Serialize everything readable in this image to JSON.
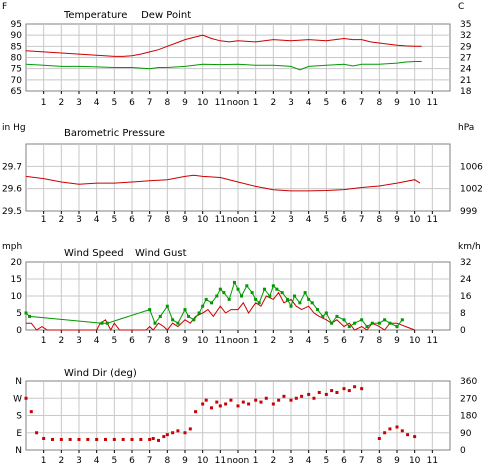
{
  "hour_labels": [
    "1",
    "2",
    "3",
    "4",
    "5",
    "6",
    "7",
    "8",
    "9",
    "10",
    "11",
    "noon",
    "1",
    "2",
    "3",
    "4",
    "5",
    "6",
    "7",
    "8",
    "9",
    "10",
    "11"
  ],
  "colors": {
    "red": "#cc0000",
    "green": "#009900",
    "frame": "#808080",
    "grid": "#c8c8c8"
  },
  "chart_data": [
    {
      "type": "line",
      "title_parts": [
        {
          "text": "Temperature",
          "color": "#cc0000"
        },
        {
          "text": "Dew Point",
          "color": "#009900"
        }
      ],
      "left_unit": "F",
      "right_unit": "C",
      "x_range_hours": [
        0,
        24
      ],
      "ylim": [
        65,
        95
      ],
      "left_ticks": [
        "95",
        "90",
        "85",
        "80",
        "75",
        "70",
        "65"
      ],
      "right_ticks": [
        "35",
        "32",
        "29",
        "27",
        "24",
        "21",
        "18"
      ],
      "grid": true,
      "series": [
        {
          "name": "Temperature",
          "color": "#cc0000",
          "x": [
            0,
            1,
            2,
            3,
            4,
            5,
            5.5,
            6,
            6.5,
            7,
            7.5,
            8,
            8.5,
            9,
            9.5,
            10,
            10.5,
            11,
            11.5,
            12,
            13,
            14,
            15,
            16,
            17,
            17.5,
            18,
            18.5,
            19,
            19.5,
            20,
            20.5,
            21,
            21.5,
            22,
            22.4
          ],
          "y": [
            83,
            82.5,
            82,
            81.5,
            81,
            80.5,
            80.5,
            80.8,
            81.5,
            82.5,
            83.5,
            85,
            86.5,
            88,
            89,
            90,
            88.5,
            87.5,
            87,
            87.5,
            87,
            88,
            87.5,
            88,
            87.5,
            88,
            88.5,
            88,
            88,
            87,
            86.5,
            86,
            85.5,
            85.2,
            85,
            85
          ]
        },
        {
          "name": "Dew Point",
          "color": "#009900",
          "x": [
            0,
            1,
            2,
            3,
            4,
            5,
            6,
            7,
            7.5,
            8,
            9,
            10,
            11,
            12,
            13,
            14,
            15,
            15.5,
            16,
            17,
            18,
            18.5,
            19,
            20,
            21,
            21.5,
            22,
            22.4
          ],
          "y": [
            77,
            76.5,
            76,
            76,
            75.8,
            75.5,
            75.5,
            75,
            75.5,
            75.5,
            76,
            77,
            76.8,
            77,
            76.5,
            76.5,
            76,
            74.5,
            76,
            76.5,
            77,
            76.2,
            77,
            77,
            77.5,
            78,
            78.2,
            78.2
          ]
        }
      ]
    },
    {
      "type": "line",
      "title_parts": [
        {
          "text": "Barometric Pressure",
          "color": "#cc0000"
        }
      ],
      "left_unit": "in Hg",
      "right_unit": "hPa",
      "x_range_hours": [
        0,
        24
      ],
      "ylim": [
        29.5,
        29.8
      ],
      "left_ticks": [
        "",
        "29.7",
        "29.6",
        "29.5"
      ],
      "right_ticks": [
        "",
        "1006",
        "1002",
        "999"
      ],
      "grid": true,
      "series": [
        {
          "name": "Barometric Pressure",
          "color": "#cc0000",
          "x": [
            0,
            1,
            2,
            3,
            4,
            5,
            6,
            7,
            8,
            9,
            9.5,
            10,
            11,
            12,
            13,
            14,
            15,
            16,
            17,
            18,
            19,
            20,
            21,
            22,
            22.3
          ],
          "y": [
            29.655,
            29.645,
            29.63,
            29.62,
            29.625,
            29.625,
            29.63,
            29.635,
            29.64,
            29.655,
            29.66,
            29.655,
            29.65,
            29.63,
            29.61,
            29.595,
            29.59,
            29.59,
            29.592,
            29.596,
            29.605,
            29.612,
            29.625,
            29.64,
            29.625
          ]
        }
      ]
    },
    {
      "type": "line",
      "title_parts": [
        {
          "text": "Wind Speed",
          "color": "#cc0000"
        },
        {
          "text": "Wind Gust",
          "color": "#009900"
        }
      ],
      "left_unit": "mph",
      "right_unit": "km/h",
      "x_range_hours": [
        0,
        24
      ],
      "ylim": [
        0,
        20
      ],
      "left_ticks": [
        "20",
        "15",
        "10",
        "5",
        "0"
      ],
      "right_ticks": [
        "32",
        "24",
        "16",
        "8",
        "0"
      ],
      "grid": true,
      "series": [
        {
          "name": "Wind Speed",
          "color": "#cc0000",
          "x": [
            0,
            0.3,
            0.6,
            0.9,
            1.2,
            1.5,
            2,
            2.5,
            3,
            3.5,
            4,
            4.2,
            4.5,
            4.8,
            5,
            5.3,
            5.6,
            6,
            6.5,
            6.8,
            7,
            7.2,
            7.5,
            7.8,
            8,
            8.3,
            8.6,
            9,
            9.3,
            9.6,
            10,
            10.3,
            10.6,
            11,
            11.3,
            11.6,
            12,
            12.3,
            12.6,
            13,
            13.3,
            13.6,
            14,
            14.3,
            14.6,
            15,
            15.3,
            15.6,
            16,
            16.3,
            16.6,
            17,
            17.3,
            17.6,
            18,
            18.3,
            18.6,
            19,
            19.3,
            19.6,
            20,
            20.3,
            20.6,
            21,
            21.5,
            22
          ],
          "y": [
            2,
            2,
            0,
            1,
            0,
            0,
            0,
            0,
            0,
            0,
            0,
            2,
            3,
            0,
            2,
            0,
            0,
            0,
            0,
            0,
            1,
            0,
            2,
            1,
            0,
            2,
            1,
            3,
            2,
            4,
            5,
            6,
            4,
            7,
            5,
            6,
            6,
            8,
            5,
            8,
            7,
            10,
            9,
            11,
            8,
            9,
            7,
            6,
            7,
            5,
            4,
            3,
            2,
            3,
            1,
            2,
            0,
            1,
            0,
            2,
            1,
            0,
            2,
            2,
            1,
            0
          ]
        },
        {
          "name": "Wind Gust",
          "color": "#009900",
          "x": [
            0,
            0.2,
            4.3,
            4.6,
            7,
            7.3,
            7.6,
            8,
            8.3,
            8.6,
            9,
            9.2,
            9.5,
            9.8,
            10,
            10.2,
            10.5,
            10.8,
            11,
            11.2,
            11.5,
            11.8,
            12,
            12.2,
            12.5,
            12.8,
            13,
            13.2,
            13.5,
            13.8,
            14,
            14.2,
            14.5,
            14.8,
            15,
            15.2,
            15.5,
            15.8,
            16,
            16.2,
            16.5,
            16.8,
            17,
            17.3,
            17.6,
            18,
            18.3,
            18.6,
            19,
            19.3,
            19.6,
            20,
            20.3,
            20.6,
            21,
            21.3
          ],
          "y": [
            5,
            4,
            2,
            2,
            6,
            2,
            4,
            7,
            3,
            2,
            6,
            4,
            3,
            5,
            7,
            9,
            8,
            10,
            12,
            11,
            9,
            14,
            12,
            10,
            13,
            11,
            9,
            8,
            12,
            10,
            13,
            12,
            11,
            9,
            7,
            10,
            8,
            11,
            9,
            8,
            6,
            4,
            5,
            2,
            4,
            3,
            1,
            2,
            3,
            1,
            2,
            2,
            3,
            2,
            1,
            3
          ]
        }
      ]
    },
    {
      "type": "scatter",
      "title_parts": [
        {
          "text": "Wind Dir (deg)",
          "color": "#cc0000"
        }
      ],
      "left_unit": "",
      "right_unit": "",
      "x_range_hours": [
        0,
        24
      ],
      "ylim": [
        0,
        360
      ],
      "left_ticks": [
        "N",
        "W",
        "S",
        "E",
        "N"
      ],
      "right_ticks": [
        "360",
        "270",
        "180",
        "90",
        "0"
      ],
      "grid": true,
      "series": [
        {
          "name": "Wind Dir",
          "color": "#cc0000",
          "x": [
            0,
            0.3,
            0.6,
            1,
            1.5,
            2,
            2.5,
            3,
            3.5,
            4,
            4.5,
            5,
            5.5,
            6,
            6.5,
            7,
            7.2,
            7.5,
            7.8,
            8,
            8.3,
            8.6,
            9,
            9.3,
            9.6,
            10,
            10.2,
            10.5,
            10.8,
            11,
            11.3,
            11.6,
            12,
            12.3,
            12.6,
            13,
            13.3,
            13.6,
            14,
            14.3,
            14.6,
            15,
            15.3,
            15.6,
            16,
            16.3,
            16.6,
            17,
            17.3,
            17.6,
            18,
            18.3,
            18.6,
            19,
            20,
            20.3,
            20.6,
            21,
            21.3,
            21.6,
            22
          ],
          "y": [
            270,
            200,
            90,
            60,
            55,
            55,
            55,
            55,
            55,
            55,
            55,
            55,
            55,
            55,
            55,
            55,
            60,
            50,
            70,
            80,
            90,
            100,
            90,
            110,
            200,
            240,
            260,
            220,
            250,
            230,
            240,
            260,
            230,
            250,
            240,
            260,
            250,
            270,
            240,
            260,
            280,
            260,
            270,
            280,
            290,
            270,
            300,
            290,
            310,
            300,
            320,
            310,
            330,
            320,
            60,
            90,
            110,
            120,
            100,
            80,
            70
          ]
        }
      ]
    }
  ]
}
